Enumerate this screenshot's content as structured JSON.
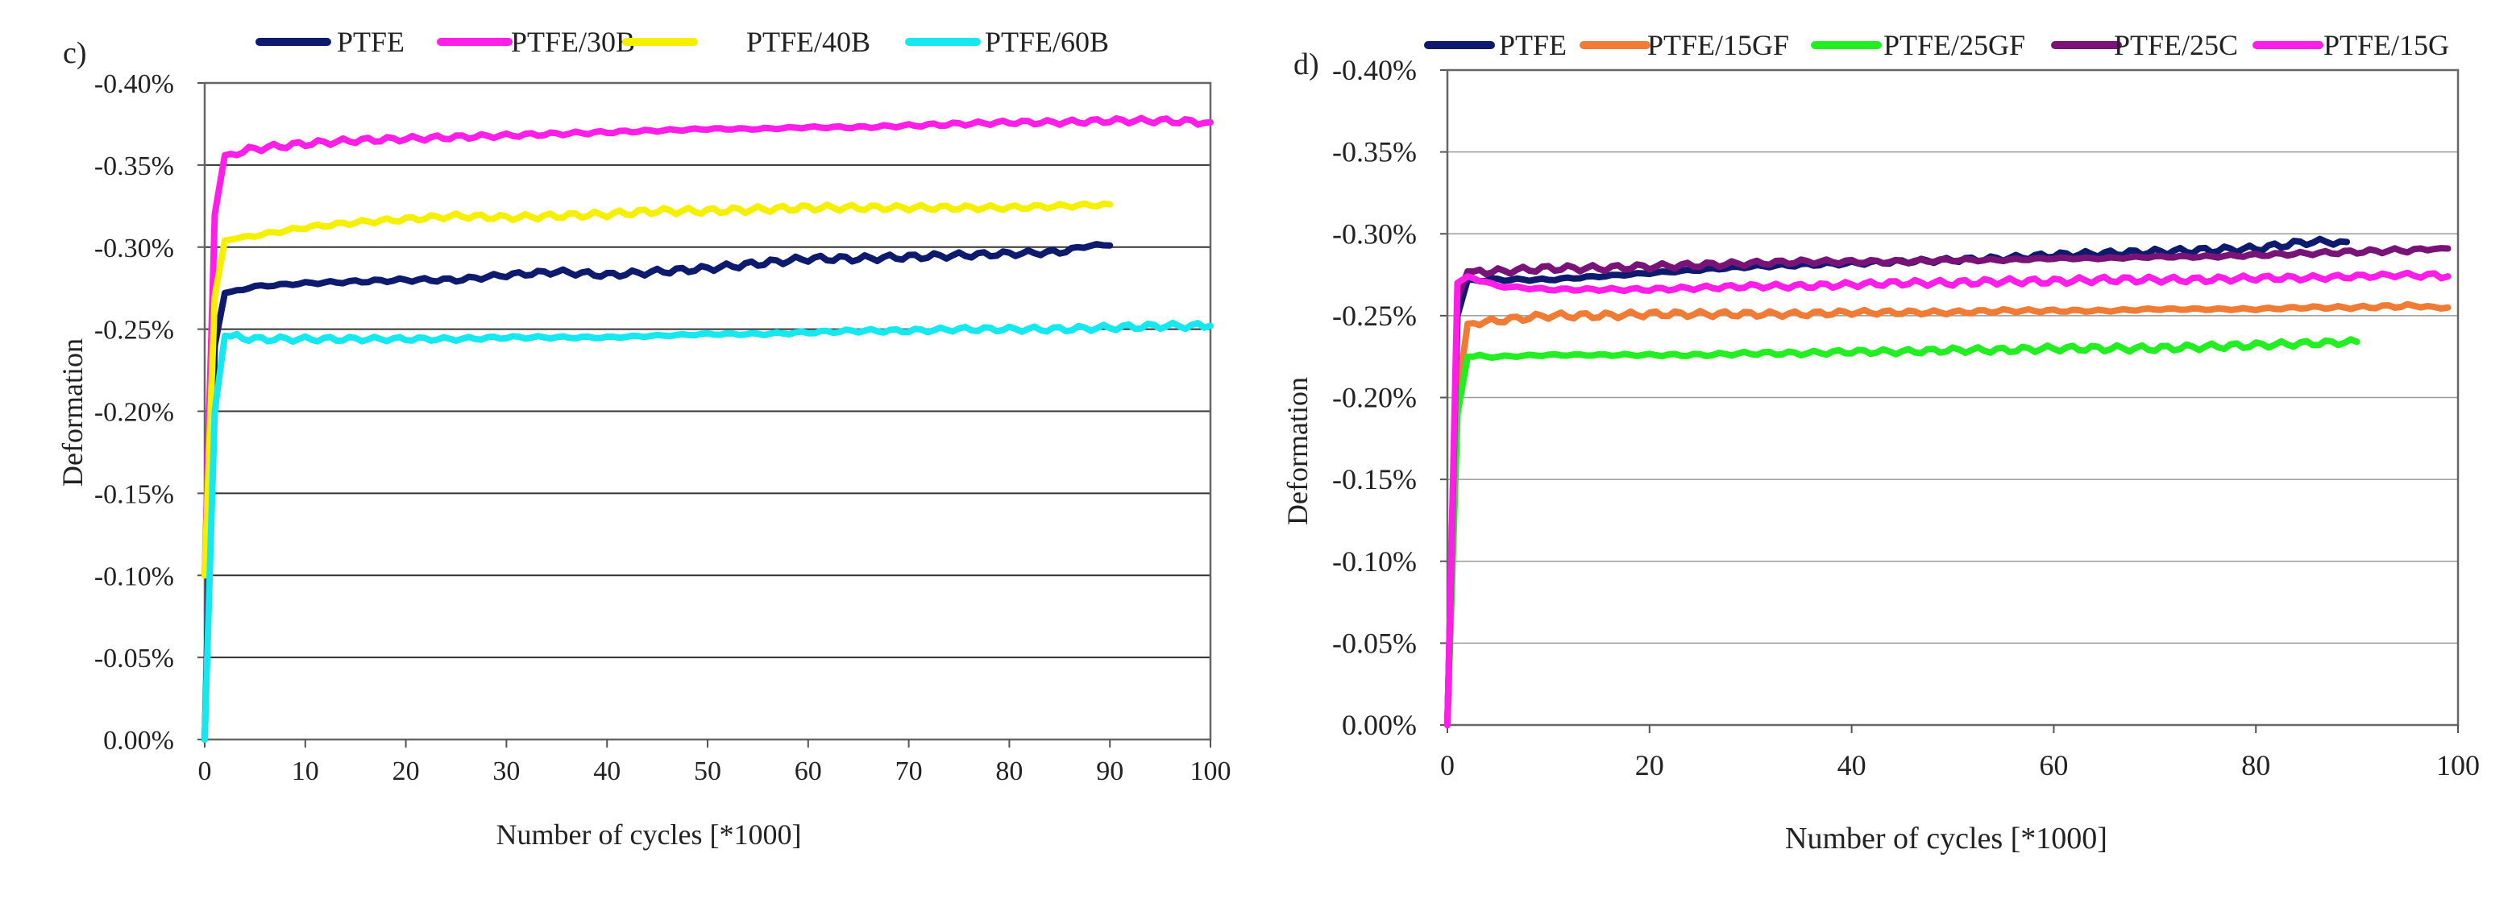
{
  "chart_data": [
    {
      "type": "line",
      "panel_label": "c)",
      "title": "",
      "xlabel": "Number of cycles [*1000]",
      "ylabel": "Deformation",
      "xlim": [
        0,
        100
      ],
      "ylim": [
        0,
        0.4
      ],
      "xticks": [
        0,
        10,
        20,
        30,
        40,
        50,
        60,
        70,
        80,
        90,
        100
      ],
      "yticks": [
        0,
        0.05,
        0.1,
        0.15,
        0.2,
        0.25,
        0.3,
        0.35,
        0.4
      ],
      "ytick_labels": [
        "0.00%",
        "-0.05%",
        "-0.10%",
        "-0.15%",
        "-0.20%",
        "-0.25%",
        "-0.30%",
        "-0.35%",
        "-0.40%"
      ],
      "grid": "horizontal",
      "legend_position": "top",
      "series": [
        {
          "name": "PTFE",
          "color": "#0d1a6e",
          "x": [
            0,
            1,
            2,
            5,
            10,
            15,
            20,
            25,
            30,
            35,
            40,
            45,
            50,
            55,
            60,
            65,
            70,
            75,
            80,
            85,
            88,
            90
          ],
          "values": [
            0,
            0.24,
            0.272,
            0.276,
            0.278,
            0.279,
            0.28,
            0.28,
            0.283,
            0.285,
            0.283,
            0.285,
            0.287,
            0.29,
            0.293,
            0.293,
            0.294,
            0.295,
            0.296,
            0.297,
            0.301,
            0.301
          ]
        },
        {
          "name": "PTFE/30B",
          "color": "#ff1ee8",
          "x": [
            0,
            1,
            2,
            5,
            10,
            15,
            20,
            25,
            30,
            35,
            40,
            45,
            50,
            55,
            60,
            65,
            70,
            75,
            80,
            85,
            90,
            95,
            100
          ],
          "values": [
            0.1,
            0.32,
            0.356,
            0.36,
            0.363,
            0.365,
            0.366,
            0.367,
            0.368,
            0.369,
            0.37,
            0.371,
            0.372,
            0.372,
            0.373,
            0.373,
            0.374,
            0.375,
            0.376,
            0.376,
            0.377,
            0.377,
            0.376
          ]
        },
        {
          "name": "PTFE/40B",
          "color": "#f5f000",
          "x": [
            0,
            1,
            2,
            5,
            10,
            15,
            20,
            25,
            30,
            35,
            40,
            45,
            50,
            55,
            60,
            65,
            70,
            75,
            80,
            85,
            90
          ],
          "values": [
            0.1,
            0.27,
            0.304,
            0.307,
            0.312,
            0.315,
            0.317,
            0.319,
            0.318,
            0.319,
            0.32,
            0.322,
            0.322,
            0.323,
            0.324,
            0.324,
            0.324,
            0.324,
            0.324,
            0.325,
            0.326
          ]
        },
        {
          "name": "PTFE/60B",
          "color": "#16e8f0",
          "x": [
            0,
            1,
            2,
            5,
            10,
            15,
            20,
            25,
            30,
            35,
            40,
            45,
            50,
            55,
            60,
            65,
            70,
            75,
            80,
            85,
            90,
            95,
            100
          ],
          "values": [
            0,
            0.2,
            0.246,
            0.244,
            0.244,
            0.244,
            0.244,
            0.244,
            0.245,
            0.245,
            0.245,
            0.246,
            0.247,
            0.247,
            0.248,
            0.249,
            0.249,
            0.25,
            0.25,
            0.25,
            0.251,
            0.252,
            0.252
          ]
        }
      ]
    },
    {
      "type": "line",
      "panel_label": "d)",
      "title": "",
      "xlabel": "Number of cycles [*1000]",
      "ylabel": "Deformation",
      "xlim": [
        0,
        100
      ],
      "ylim": [
        0,
        0.4
      ],
      "xticks": [
        0,
        20,
        40,
        60,
        80,
        100
      ],
      "yticks": [
        0,
        0.05,
        0.1,
        0.15,
        0.2,
        0.25,
        0.3,
        0.35,
        0.4
      ],
      "ytick_labels": [
        "0.00%",
        "-0.05%",
        "-0.10%",
        "-0.15%",
        "-0.20%",
        "-0.25%",
        "-0.30%",
        "-0.35%",
        "-0.40%"
      ],
      "grid": "horizontal",
      "legend_position": "top",
      "series": [
        {
          "name": "PTFE",
          "color": "#0d1a6e",
          "x": [
            0,
            1,
            2,
            5,
            10,
            15,
            20,
            25,
            30,
            35,
            40,
            45,
            50,
            55,
            60,
            65,
            70,
            75,
            80,
            85,
            89
          ],
          "values": [
            0,
            0.25,
            0.272,
            0.272,
            0.272,
            0.274,
            0.276,
            0.278,
            0.28,
            0.281,
            0.282,
            0.283,
            0.284,
            0.285,
            0.287,
            0.288,
            0.289,
            0.29,
            0.291,
            0.295,
            0.295
          ]
        },
        {
          "name": "PTFE/15GF",
          "color": "#f07b34",
          "x": [
            0,
            1,
            2,
            5,
            10,
            15,
            20,
            25,
            30,
            35,
            40,
            45,
            50,
            55,
            60,
            65,
            70,
            75,
            80,
            85,
            90,
            95,
            99
          ],
          "values": [
            0,
            0.2,
            0.245,
            0.247,
            0.25,
            0.25,
            0.251,
            0.251,
            0.251,
            0.251,
            0.252,
            0.252,
            0.252,
            0.253,
            0.253,
            0.253,
            0.254,
            0.254,
            0.254,
            0.255,
            0.255,
            0.256,
            0.255
          ]
        },
        {
          "name": "PTFE/25GF",
          "color": "#22ee22",
          "x": [
            0,
            1,
            2,
            5,
            10,
            15,
            20,
            25,
            30,
            35,
            40,
            45,
            50,
            55,
            60,
            65,
            70,
            75,
            80,
            85,
            90
          ],
          "values": [
            0,
            0.19,
            0.225,
            0.225,
            0.226,
            0.226,
            0.226,
            0.226,
            0.227,
            0.227,
            0.228,
            0.228,
            0.229,
            0.229,
            0.23,
            0.23,
            0.23,
            0.231,
            0.232,
            0.233,
            0.234
          ]
        },
        {
          "name": "PTFE/25C",
          "color": "#7a1378",
          "x": [
            0,
            1,
            2,
            5,
            10,
            15,
            20,
            25,
            30,
            35,
            40,
            45,
            50,
            55,
            60,
            65,
            70,
            75,
            80,
            85,
            90,
            95,
            99
          ],
          "values": [
            0,
            0.26,
            0.277,
            0.277,
            0.279,
            0.279,
            0.28,
            0.281,
            0.282,
            0.283,
            0.283,
            0.283,
            0.284,
            0.284,
            0.285,
            0.285,
            0.286,
            0.286,
            0.287,
            0.288,
            0.289,
            0.29,
            0.291
          ]
        },
        {
          "name": "PTFE/15G",
          "color": "#ff1ee8",
          "x": [
            0,
            1,
            2,
            5,
            10,
            15,
            20,
            25,
            30,
            35,
            40,
            45,
            50,
            55,
            60,
            65,
            70,
            75,
            80,
            85,
            90,
            95,
            99
          ],
          "values": [
            0,
            0.27,
            0.274,
            0.268,
            0.266,
            0.266,
            0.266,
            0.267,
            0.268,
            0.268,
            0.269,
            0.27,
            0.27,
            0.271,
            0.271,
            0.272,
            0.272,
            0.272,
            0.273,
            0.273,
            0.274,
            0.275,
            0.274
          ]
        }
      ]
    }
  ]
}
